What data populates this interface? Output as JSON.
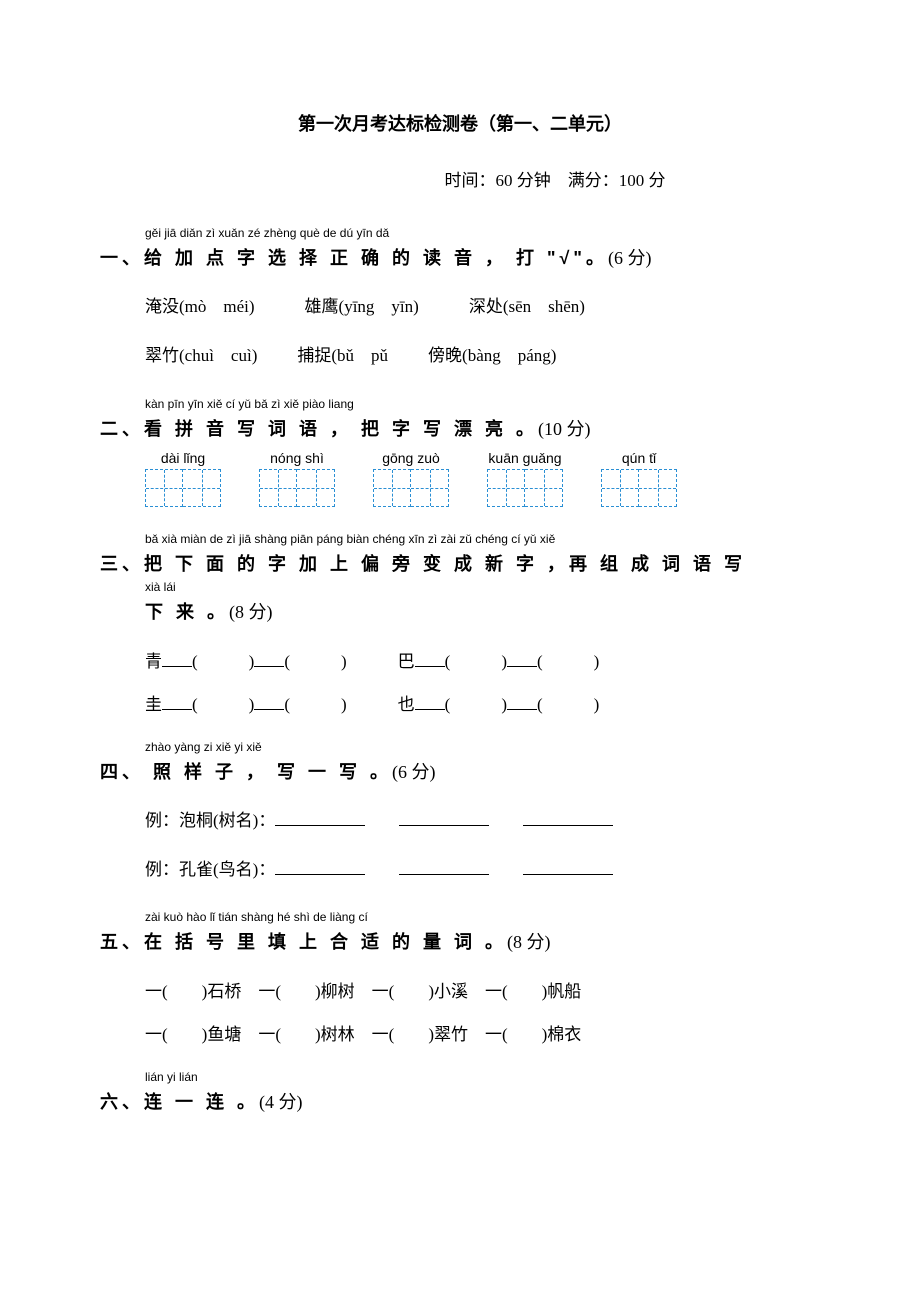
{
  "title": "第一次月考达标检测卷（第一、二单元）",
  "timeScore": "时间：60 分钟　满分：100 分",
  "q1": {
    "pinyin": "gěi jiā diǎn zì  xuǎn zé zhèng què de dú yīn       dǎ",
    "heading": "一、给 加 点 字 选 择 正 确 的 读 音 ， 打 \"√\"。",
    "points": "(6 分)",
    "row1a": "淹没(mò　méi)",
    "row1b": "雄鹰(yīng　yīn)",
    "row1c": "深处(sēn　shēn)",
    "row2a": "翠竹(chuì　cuì)",
    "row2b": "捕捉(bǔ　pǔ",
    "row2c": "傍晚(bàng　páng)"
  },
  "q2": {
    "pinyin": "kàn pīn yīn xiě cí yǔ         bǎ zì xiě piào liang",
    "heading": "二、看 拼 音 写 词 语 ， 把 字 写 漂  亮 。",
    "points": "(10 分)",
    "words": [
      {
        "pinyin": "dài    lǐng"
      },
      {
        "pinyin": "nóng  shì"
      },
      {
        "pinyin": "gōng  zuò"
      },
      {
        "pinyin": "kuān guǎng"
      },
      {
        "pinyin": "qún     tǐ"
      }
    ]
  },
  "q3": {
    "pinyin": "bǎ xià miàn de  zì   jiā shàng piān páng biàn chéng xīn zì     zài zǔ chéng cí  yǔ xiě",
    "heading": "三、把 下 面 的 字 加  上  偏  旁  变  成  新 字 ，再 组 成 词 语 写",
    "pinyinCont": "xià lái",
    "headingCont": "下 来 。",
    "points": "(8 分)",
    "r1a": "青",
    "r1b": "巴",
    "r2a": "圭",
    "r2b": "也"
  },
  "q4": {
    "pinyin": "zhào yàng zi      xiě yi xiě",
    "heading": "四、 照  样 子 ， 写 一 写 。",
    "points": "(6 分)",
    "ex1": "例：泡桐(树名)：",
    "ex2": "例：孔雀(鸟名)："
  },
  "q5": {
    "pinyin": "zài kuò hào lǐ  tián shàng hé shì de liàng cí",
    "heading": "五、在 括 号 里 填  上  合 适 的 量  词 。",
    "points": "(8 分)",
    "r1a": "一(　　)石桥",
    "r1b": "一(　　)柳树",
    "r1c": "一(　　)小溪",
    "r1d": "一(　　)帆船",
    "r2a": "一(　　)鱼塘",
    "r2b": "一(　　)树林",
    "r2c": "一(　　)翠竹",
    "r2d": "一(　　)棉衣"
  },
  "q6": {
    "pinyin": "lián yi lián",
    "heading": "六、连 一 连 。",
    "points": "(4 分)"
  }
}
